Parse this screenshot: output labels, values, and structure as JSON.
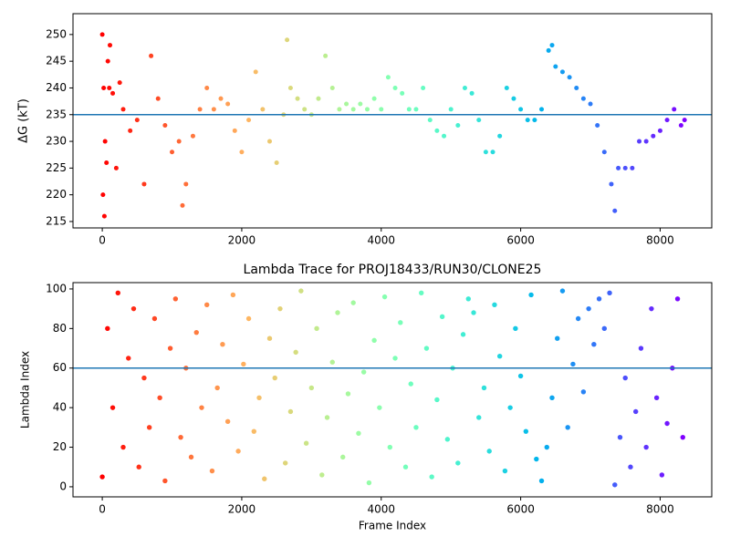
{
  "chart_data": [
    {
      "type": "scatter",
      "y_label": "ΔG (kT)",
      "x": [
        0,
        10,
        20,
        30,
        40,
        60,
        80,
        100,
        110,
        150,
        200,
        250,
        300,
        400,
        500,
        600,
        700,
        800,
        900,
        1000,
        1100,
        1150,
        1200,
        1300,
        1400,
        1500,
        1600,
        1700,
        1800,
        1900,
        2000,
        2100,
        2200,
        2300,
        2400,
        2500,
        2600,
        2650,
        2700,
        2800,
        2900,
        3000,
        3100,
        3200,
        3300,
        3400,
        3500,
        3600,
        3700,
        3800,
        3900,
        4000,
        4100,
        4200,
        4300,
        4400,
        4500,
        4600,
        4700,
        4800,
        4900,
        5000,
        5100,
        5200,
        5300,
        5400,
        5500,
        5600,
        5700,
        5800,
        5900,
        6000,
        6100,
        6200,
        6300,
        6400,
        6450,
        6500,
        6600,
        6700,
        6800,
        6900,
        7000,
        7100,
        7200,
        7300,
        7350,
        7400,
        7500,
        7600,
        7700,
        7800,
        7900,
        8000,
        8100,
        8200,
        8300,
        8350
      ],
      "values": [
        250,
        220,
        240,
        216,
        230,
        226,
        245,
        240,
        248,
        239,
        225,
        241,
        236,
        232,
        234,
        222,
        246,
        238,
        233,
        228,
        230,
        218,
        222,
        231,
        236,
        240,
        236,
        238,
        237,
        232,
        228,
        234,
        243,
        236,
        230,
        226,
        235,
        249,
        240,
        238,
        236,
        235,
        238,
        246,
        240,
        236,
        237,
        236,
        237,
        236,
        238,
        236,
        242,
        240,
        239,
        236,
        236,
        240,
        234,
        232,
        231,
        236,
        233,
        240,
        239,
        234,
        228,
        228,
        231,
        240,
        238,
        236,
        234,
        234,
        236,
        247,
        248,
        244,
        243,
        242,
        240,
        238,
        237,
        233,
        228,
        222,
        217,
        225,
        225,
        225,
        230,
        230,
        231,
        232,
        234,
        236,
        233,
        234
      ],
      "colormap": "rainbow",
      "colormap_reversed": true,
      "xlim": [
        -420,
        8740
      ],
      "ylim": [
        213.8,
        253.9
      ],
      "xticks": [
        0,
        2000,
        4000,
        6000,
        8000
      ],
      "yticks": [
        215,
        220,
        225,
        230,
        235,
        240,
        245,
        250
      ],
      "hline": 235,
      "hline_color": "#1f77b4"
    },
    {
      "type": "scatter",
      "title": "Lambda Trace for PROJ18433/RUN30/CLONE25",
      "x_label": "Frame Index",
      "y_label": "Lambda Index",
      "x": [
        0,
        75,
        150,
        225,
        300,
        375,
        450,
        525,
        600,
        675,
        750,
        825,
        900,
        975,
        1050,
        1125,
        1200,
        1275,
        1350,
        1425,
        1500,
        1575,
        1650,
        1725,
        1800,
        1875,
        1950,
        2025,
        2100,
        2175,
        2250,
        2325,
        2400,
        2475,
        2550,
        2625,
        2700,
        2775,
        2850,
        2925,
        3000,
        3075,
        3150,
        3225,
        3300,
        3375,
        3450,
        3525,
        3600,
        3675,
        3750,
        3825,
        3900,
        3975,
        4050,
        4125,
        4200,
        4275,
        4350,
        4425,
        4500,
        4575,
        4650,
        4725,
        4800,
        4875,
        4950,
        5025,
        5100,
        5175,
        5250,
        5325,
        5400,
        5475,
        5550,
        5625,
        5700,
        5775,
        5850,
        5925,
        6000,
        6075,
        6150,
        6225,
        6300,
        6375,
        6450,
        6525,
        6600,
        6675,
        6750,
        6825,
        6900,
        6975,
        7050,
        7125,
        7200,
        7275,
        7350,
        7425,
        7500,
        7575,
        7650,
        7725,
        7800,
        7875,
        7950,
        8025,
        8100,
        8175,
        8250,
        8325
      ],
      "values": [
        5,
        80,
        40,
        98,
        20,
        65,
        90,
        10,
        55,
        30,
        85,
        45,
        3,
        70,
        95,
        25,
        60,
        15,
        78,
        40,
        92,
        8,
        50,
        72,
        33,
        97,
        18,
        62,
        85,
        28,
        45,
        4,
        75,
        55,
        90,
        12,
        38,
        68,
        99,
        22,
        50,
        80,
        6,
        35,
        63,
        88,
        15,
        47,
        93,
        27,
        58,
        2,
        74,
        40,
        96,
        20,
        65,
        83,
        10,
        52,
        30,
        98,
        70,
        5,
        44,
        86,
        24,
        60,
        12,
        77,
        95,
        88,
        35,
        50,
        18,
        92,
        66,
        8,
        40,
        80,
        56,
        28,
        97,
        14,
        3,
        20,
        45,
        75,
        99,
        30,
        62,
        85,
        48,
        90,
        72,
        95,
        80,
        98,
        1,
        25,
        55,
        10,
        38,
        70,
        20,
        90,
        45,
        6,
        32,
        60,
        95,
        25
      ],
      "colormap": "rainbow",
      "colormap_reversed": true,
      "xlim": [
        -420,
        8740
      ],
      "ylim": [
        -5.1,
        103.2
      ],
      "xticks": [
        0,
        2000,
        4000,
        6000,
        8000
      ],
      "yticks": [
        0,
        20,
        40,
        60,
        80,
        100
      ],
      "hline": 60,
      "hline_color": "#1f77b4"
    }
  ]
}
